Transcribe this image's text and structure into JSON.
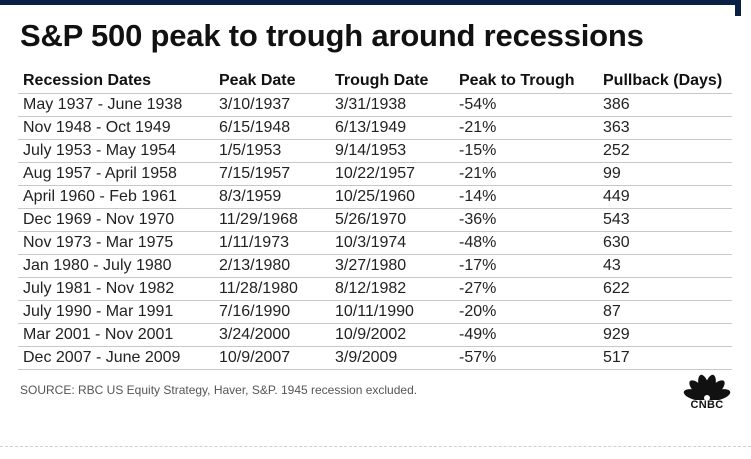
{
  "title": "S&P 500 peak to trough around recessions",
  "source": "SOURCE: RBC US Equity Strategy, Haver, S&P. 1945 recession excluded.",
  "logo_text": "CNBC",
  "colors": {
    "topbar": "#0a1f44",
    "rule": "#c8c8c8"
  },
  "chart_data": {
    "type": "table",
    "columns": [
      "Recession Dates",
      "Peak Date",
      "Trough Date",
      "Peak to Trough",
      "Pullback (Days)"
    ],
    "rows": [
      [
        "May 1937  - June 1938",
        "3/10/1937",
        "3/31/1938",
        "-54%",
        "386"
      ],
      [
        "Nov 1948 - Oct 1949",
        "6/15/1948",
        "6/13/1949",
        "-21%",
        "363"
      ],
      [
        "July 1953 - May 1954",
        "1/5/1953",
        "9/14/1953",
        "-15%",
        "252"
      ],
      [
        "Aug 1957 - April 1958",
        "7/15/1957",
        "10/22/1957",
        "-21%",
        "99"
      ],
      [
        "April 1960 - Feb 1961",
        "8/3/1959",
        "10/25/1960",
        "-14%",
        "449"
      ],
      [
        "Dec 1969 - Nov 1970",
        "11/29/1968",
        "5/26/1970",
        "-36%",
        "543"
      ],
      [
        "Nov 1973 - Mar 1975",
        "1/11/1973",
        "10/3/1974",
        "-48%",
        "630"
      ],
      [
        "Jan 1980 - July 1980",
        "2/13/1980",
        "3/27/1980",
        "-17%",
        "43"
      ],
      [
        "July 1981 - Nov 1982",
        "11/28/1980",
        "8/12/1982",
        "-27%",
        "622"
      ],
      [
        "July 1990 - Mar 1991",
        "7/16/1990",
        "10/11/1990",
        "-20%",
        "87"
      ],
      [
        "Mar 2001 - Nov 2001",
        "3/24/2000",
        "10/9/2002",
        "-49%",
        "929"
      ],
      [
        "Dec 2007 - June 2009",
        "10/9/2007",
        "3/9/2009",
        "-57%",
        "517"
      ]
    ]
  }
}
